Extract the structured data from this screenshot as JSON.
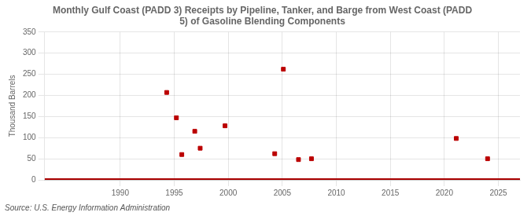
{
  "chart_data": {
    "type": "scatter",
    "title": "Monthly Gulf Coast (PADD 3) Receipts by Pipeline, Tanker, and Barge from West Coast (PADD\n5) of Gasoline Blending Components",
    "ylabel": "Thousand Barrels",
    "source": "Source: U.S. Energy Information Administration",
    "x": [
      1994.3,
      1995.2,
      1995.7,
      1996.9,
      1997.4,
      1999.7,
      2004.3,
      2005.1,
      2006.5,
      2007.7,
      2021.1,
      2024.0
    ],
    "values": [
      207,
      147,
      60,
      115,
      75,
      128,
      62,
      262,
      48,
      50,
      98,
      50
    ],
    "color": "#bb0000",
    "marker": "square",
    "hline": {
      "y": 0,
      "color": "#aa0000"
    },
    "xlim": [
      1983,
      2027
    ],
    "ylim": [
      0,
      350
    ],
    "xticks": [
      1990,
      1995,
      2000,
      2005,
      2010,
      2015,
      2020,
      2025
    ],
    "yticks": [
      0,
      50,
      100,
      150,
      200,
      250,
      300,
      350
    ],
    "grid": true
  }
}
